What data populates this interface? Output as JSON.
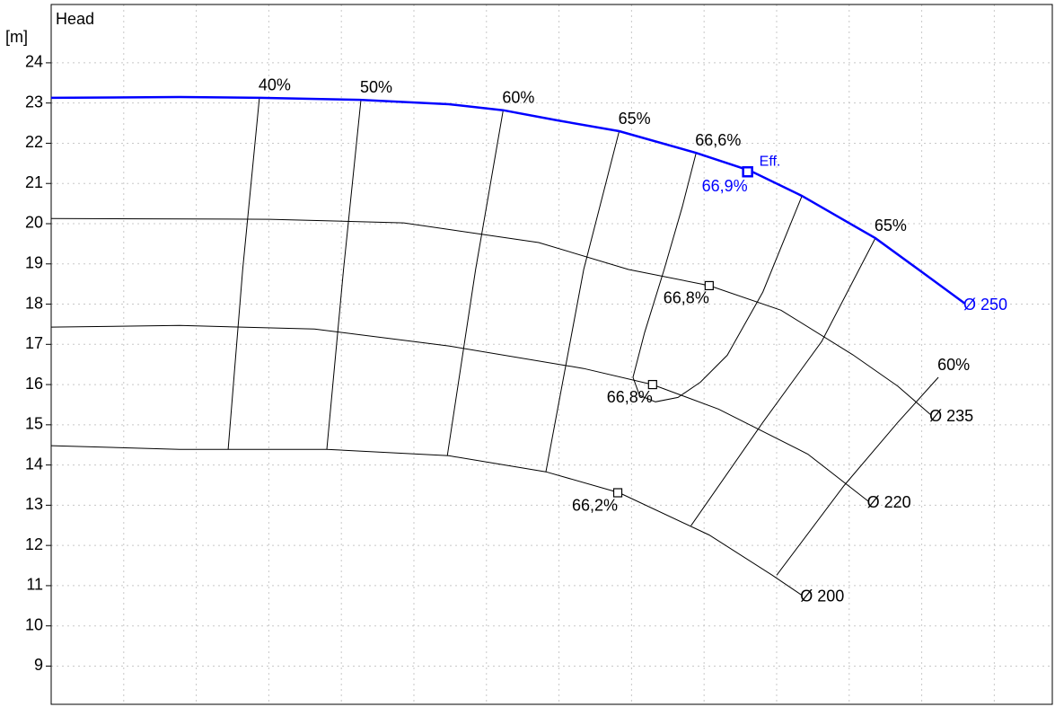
{
  "chart_data": {
    "type": "line",
    "title": "Head",
    "y_label": "[m]",
    "ylim": [
      8.05,
      25.45
    ],
    "yticks": [
      9,
      10,
      11,
      12,
      13,
      14,
      15,
      16,
      17,
      18,
      19,
      20,
      21,
      22,
      23,
      24
    ],
    "xlim": [
      0,
      13.8
    ],
    "xticks": [
      1,
      2,
      3,
      4,
      5,
      6,
      7,
      8,
      9,
      10,
      11,
      12,
      13
    ],
    "grid": true,
    "series": [
      {
        "name": "Ø 250",
        "color": "#0000ff",
        "x": [
          0,
          1.77,
          2.88,
          4.25,
          5.48,
          6.23,
          6.97,
          7.83,
          8.89,
          9.63,
          10.35,
          11.36,
          12.04,
          12.6
        ],
        "values": [
          23.13,
          23.15,
          23.13,
          23.08,
          22.97,
          22.82,
          22.57,
          22.3,
          21.76,
          21.32,
          20.69,
          19.64,
          18.75,
          18.01
        ]
      },
      {
        "name": "Ø 235",
        "color": "#000000",
        "x": [
          0,
          3.01,
          4.86,
          6.72,
          7.96,
          9.07,
          10.06,
          11.05,
          11.67,
          12.13
        ],
        "values": [
          20.13,
          20.11,
          20.02,
          19.53,
          18.86,
          18.46,
          17.85,
          16.74,
          15.96,
          15.24
        ]
      },
      {
        "name": "Ø 220",
        "color": "#000000",
        "x": [
          0,
          1.77,
          3.63,
          5.48,
          7.34,
          8.29,
          9.2,
          10.43,
          11.27
        ],
        "values": [
          17.43,
          17.47,
          17.38,
          16.96,
          16.4,
          16.0,
          15.39,
          14.27,
          13.09
        ]
      },
      {
        "name": "Ø 200",
        "color": "#000000",
        "x": [
          0,
          1.77,
          3.8,
          5.48,
          6.82,
          7.83,
          9.07,
          9.94,
          10.35
        ],
        "values": [
          14.48,
          14.39,
          14.39,
          14.23,
          13.83,
          13.31,
          12.26,
          11.26,
          10.76
        ]
      }
    ],
    "isolines": [
      {
        "label": "40%",
        "x": [
          2.87,
          2.64,
          2.44
        ],
        "values": [
          23.13,
          18.86,
          14.39
        ]
      },
      {
        "label": "50%",
        "x": [
          4.27,
          4.03,
          3.8
        ],
        "values": [
          23.08,
          18.86,
          14.39
        ]
      },
      {
        "label": "60%",
        "x": [
          6.23,
          5.85,
          5.46
        ],
        "values": [
          22.82,
          18.86,
          14.23
        ]
      },
      {
        "label": "65%",
        "x": [
          7.83,
          7.34,
          6.82
        ],
        "values": [
          22.3,
          18.86,
          13.83
        ]
      },
      {
        "label": "66,6%",
        "x": [
          8.89,
          8.7,
          8.45,
          8.18,
          8.02,
          8.11,
          8.33,
          8.64,
          8.95,
          9.32,
          9.81,
          10.35
        ],
        "values": [
          21.76,
          20.42,
          18.86,
          17.29,
          16.18,
          15.73,
          15.57,
          15.68,
          16.06,
          16.73,
          18.3,
          20.69
        ]
      },
      {
        "label": "65%",
        "x": [
          11.36,
          10.62,
          9.81,
          8.82
        ],
        "values": [
          19.64,
          17.07,
          15.06,
          12.49
        ]
      },
      {
        "label": "60%",
        "x": [
          12.23,
          11.67,
          10.93,
          10.0
        ],
        "values": [
          16.18,
          15.06,
          13.49,
          11.26
        ]
      }
    ],
    "markers": [
      {
        "x": 9.6,
        "y": 21.29,
        "label": "66,9%",
        "color": "#0000ff",
        "note": "Eff."
      },
      {
        "x": 9.07,
        "y": 18.46,
        "label": "66,8%",
        "color": "#000000"
      },
      {
        "x": 8.29,
        "y": 16.0,
        "label": "66,8%",
        "color": "#000000"
      },
      {
        "x": 7.81,
        "y": 13.31,
        "label": "66,2%",
        "color": "#000000"
      }
    ]
  }
}
